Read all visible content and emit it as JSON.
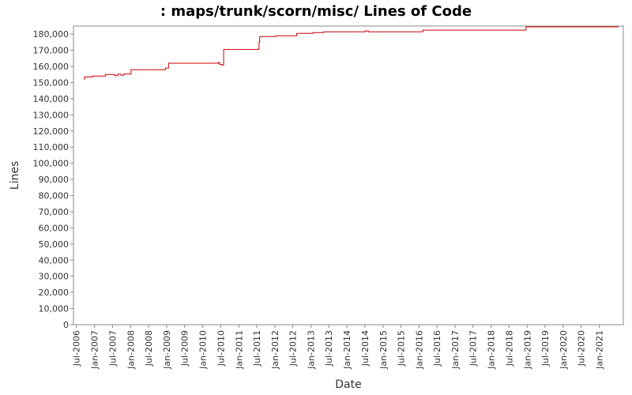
{
  "chart_data": {
    "type": "line",
    "title": ": maps/trunk/scorn/misc/ Lines of Code",
    "xlabel": "Date",
    "ylabel": "Lines",
    "ylim": [
      0,
      185000
    ],
    "xlim": [
      "2006-06-01",
      "2021-09-01"
    ],
    "yticks": [
      0,
      10000,
      20000,
      30000,
      40000,
      50000,
      60000,
      70000,
      80000,
      90000,
      100000,
      110000,
      120000,
      130000,
      140000,
      150000,
      160000,
      170000,
      180000
    ],
    "ytick_labels": [
      "0",
      "10,000",
      "20,000",
      "30,000",
      "40,000",
      "50,000",
      "60,000",
      "70,000",
      "80,000",
      "90,000",
      "100,000",
      "110,000",
      "120,000",
      "130,000",
      "140,000",
      "150,000",
      "160,000",
      "170,000",
      "180,000"
    ],
    "xticks": [
      "2006-07-01",
      "2007-01-01",
      "2007-07-01",
      "2008-01-01",
      "2008-07-01",
      "2009-01-01",
      "2009-07-01",
      "2010-01-01",
      "2010-07-01",
      "2011-01-01",
      "2011-07-01",
      "2012-01-01",
      "2012-07-01",
      "2013-01-01",
      "2013-07-01",
      "2014-01-01",
      "2014-07-01",
      "2015-01-01",
      "2015-07-01",
      "2016-01-01",
      "2016-07-01",
      "2017-01-01",
      "2017-07-01",
      "2018-01-01",
      "2018-07-01",
      "2019-01-01",
      "2019-07-01",
      "2020-01-01",
      "2020-07-01",
      "2021-01-01"
    ],
    "xtick_labels": [
      "Jul-2006",
      "Jan-2007",
      "Jul-2007",
      "Jan-2008",
      "Jul-2008",
      "Jan-2009",
      "Jul-2009",
      "Jan-2010",
      "Jul-2010",
      "Jan-2011",
      "Jul-2011",
      "Jan-2012",
      "Jul-2012",
      "Jan-2013",
      "Jul-2013",
      "Jan-2014",
      "Jul-2014",
      "Jan-2015",
      "Jul-2015",
      "Jan-2016",
      "Jul-2016",
      "Jan-2017",
      "Jul-2017",
      "Jan-2018",
      "Jul-2018",
      "Jan-2019",
      "Jul-2019",
      "Jan-2020",
      "Jul-2020",
      "Jan-2021"
    ],
    "grid": false,
    "line_color": "#cc0000",
    "series": [
      {
        "x": [
          "2006-09-15",
          "2006-09-20",
          "2006-12-10",
          "2007-04-20",
          "2007-07-25",
          "2007-08-25",
          "2007-09-25",
          "2007-10-25",
          "2008-01-05",
          "2008-12-20",
          "2009-01-20",
          "2009-07-10",
          "2010-06-10",
          "2010-06-20",
          "2010-07-15",
          "2010-08-01",
          "2011-07-20",
          "2011-07-25",
          "2011-08-01",
          "2011-08-05",
          "2012-01-10",
          "2012-08-10",
          "2013-01-20",
          "2013-05-10",
          "2014-07-05",
          "2014-08-05",
          "2016-02-10",
          "2018-12-20",
          "2021-07-15"
        ],
        "y": [
          152000,
          153500,
          154000,
          155000,
          154300,
          155200,
          154600,
          155300,
          158000,
          159000,
          162000,
          162000,
          162500,
          161200,
          160800,
          170500,
          171000,
          175000,
          178000,
          178500,
          179000,
          180500,
          181000,
          181500,
          182000,
          181500,
          182500,
          184500,
          184500
        ]
      }
    ]
  }
}
